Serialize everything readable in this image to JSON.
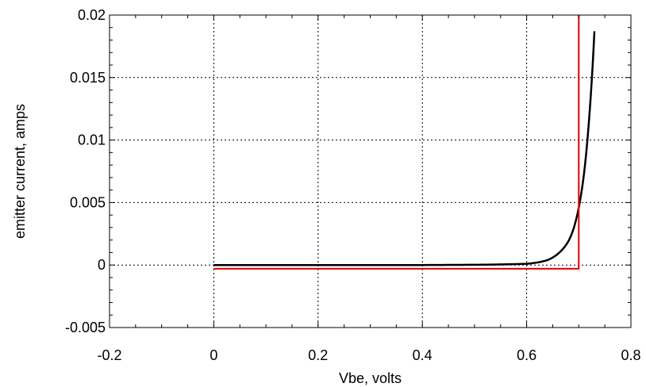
{
  "chart_data": {
    "type": "line",
    "title": "",
    "xlabel": "Vbe, volts",
    "ylabel": "emitter current, amps",
    "xlim": [
      -0.2,
      0.8
    ],
    "ylim": [
      -0.005,
      0.02
    ],
    "x_ticks": [
      -0.2,
      0,
      0.2,
      0.4,
      0.6,
      0.8
    ],
    "x_tick_labels": [
      "-0.2",
      "0",
      "0.2",
      "0.4",
      "0.6",
      "0.8"
    ],
    "y_ticks": [
      -0.005,
      0,
      0.005,
      0.01,
      0.015,
      0.02
    ],
    "y_tick_labels": [
      "-0.005",
      "0",
      "0.005",
      "0.01",
      "0.015",
      "0.02"
    ],
    "grid": true,
    "legend": "none",
    "series": [
      {
        "color": "#000000",
        "x": [
          0,
          0.1,
          0.2,
          0.3,
          0.4,
          0.5,
          0.55,
          0.6,
          0.62,
          0.64,
          0.66,
          0.68,
          0.69,
          0.7,
          0.71,
          0.72,
          0.73
        ],
        "y": [
          0,
          0,
          0,
          0,
          0,
          2e-05,
          5e-05,
          0.0001,
          0.0002,
          0.0004,
          0.0009,
          0.0019,
          0.0029,
          0.0046,
          0.0073,
          0.0118,
          0.0187
        ]
      },
      {
        "color": "#e00000",
        "x": [
          0,
          0.7,
          0.7
        ],
        "y": [
          -0.0003,
          -0.0003,
          0.02
        ]
      }
    ]
  }
}
